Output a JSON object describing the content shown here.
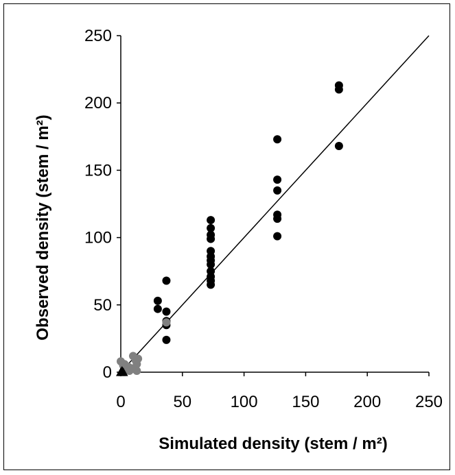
{
  "chart_data": {
    "type": "scatter",
    "xlabel": "Simulated density (stem / m²)",
    "ylabel": "Observed density (stem / m²)",
    "xlim": [
      0,
      250
    ],
    "ylim": [
      0,
      250
    ],
    "xticks": [
      0,
      50,
      100,
      150,
      200,
      250
    ],
    "yticks": [
      0,
      50,
      100,
      150,
      200,
      250
    ],
    "grid": false,
    "legend": "none",
    "reference_line": {
      "x": [
        0,
        250
      ],
      "y": [
        0,
        250
      ]
    },
    "series": [
      {
        "marker": "circle",
        "color": "#000000",
        "points": [
          [
            30,
            53
          ],
          [
            30,
            47
          ],
          [
            37,
            68
          ],
          [
            37,
            45
          ],
          [
            37,
            38
          ],
          [
            37,
            35
          ],
          [
            37,
            24
          ],
          [
            73,
            113
          ],
          [
            73,
            107
          ],
          [
            73,
            102
          ],
          [
            73,
            99
          ],
          [
            73,
            90
          ],
          [
            73,
            86
          ],
          [
            73,
            83
          ],
          [
            73,
            80
          ],
          [
            73,
            75
          ],
          [
            73,
            71
          ],
          [
            73,
            68
          ],
          [
            73,
            65
          ],
          [
            127,
            173
          ],
          [
            127,
            143
          ],
          [
            127,
            135
          ],
          [
            127,
            117
          ],
          [
            127,
            114
          ],
          [
            127,
            101
          ],
          [
            177,
            213
          ],
          [
            177,
            210
          ],
          [
            177,
            168
          ]
        ]
      },
      {
        "marker": "circle",
        "color": "#808080",
        "points": [
          [
            0,
            8
          ],
          [
            2,
            5
          ],
          [
            3,
            6
          ],
          [
            4,
            3
          ],
          [
            5,
            2
          ],
          [
            6,
            4
          ],
          [
            7,
            1
          ],
          [
            8,
            3
          ],
          [
            10,
            12
          ],
          [
            12,
            9
          ],
          [
            13,
            6
          ],
          [
            13,
            1
          ],
          [
            14,
            10
          ],
          [
            37,
            37
          ]
        ]
      },
      {
        "marker": "triangle",
        "color": "#000000",
        "points": [
          [
            0,
            0
          ],
          [
            1,
            1
          ],
          [
            2,
            0
          ]
        ]
      }
    ]
  }
}
